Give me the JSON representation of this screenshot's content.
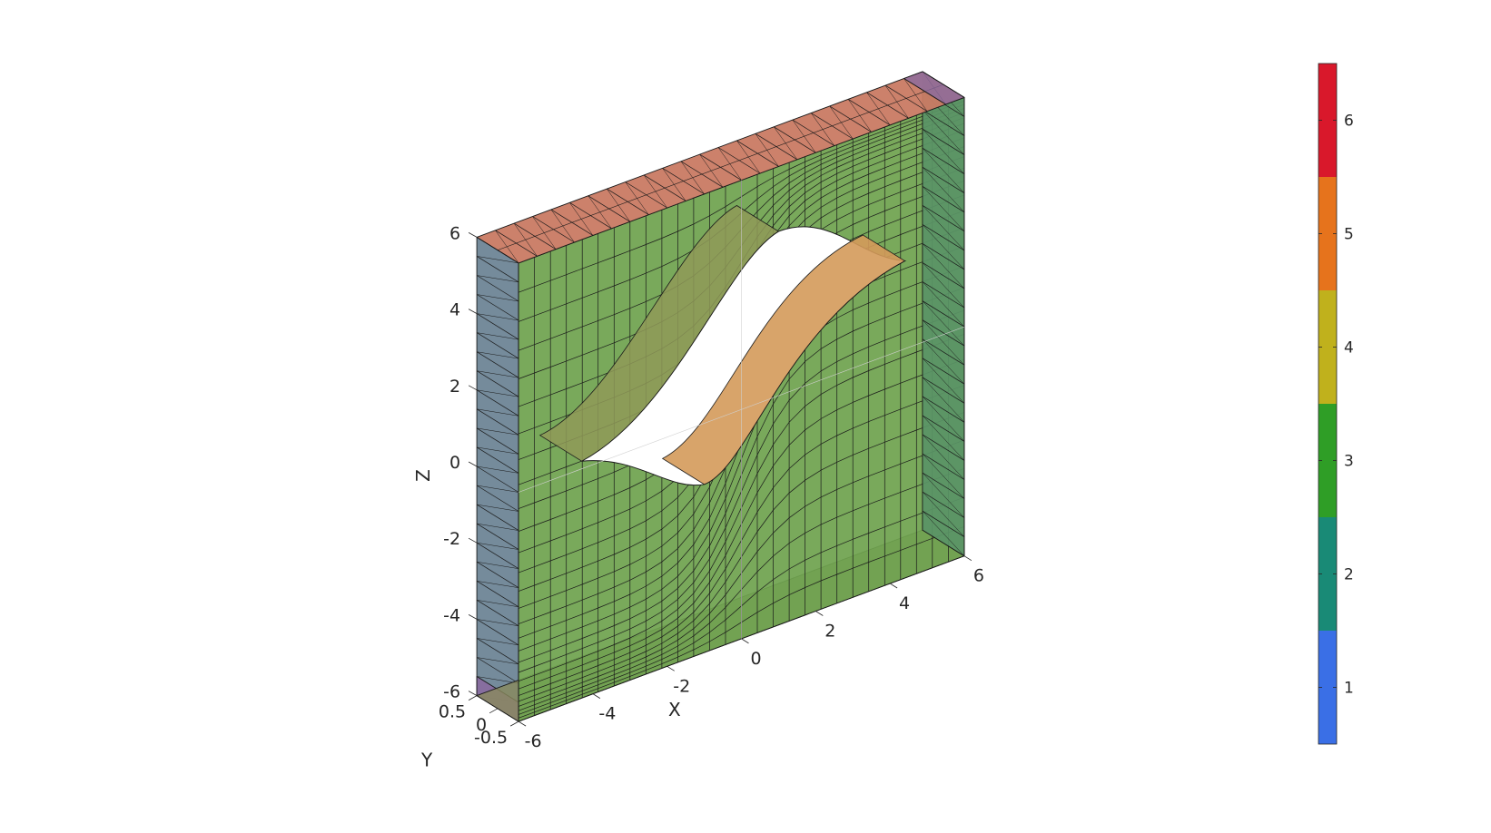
{
  "chart_data": {
    "type": "3d-mesh",
    "title": "",
    "axes": {
      "x": {
        "label": "X",
        "ticks": [
          "-6",
          "-4",
          "-2",
          "0",
          "2",
          "4",
          "6"
        ],
        "range": [
          -6,
          6
        ]
      },
      "y": {
        "label": "Y",
        "ticks": [
          "-0.5",
          "0",
          "0.5"
        ],
        "range": [
          -0.5,
          0.5
        ]
      },
      "z": {
        "label": "Z",
        "ticks": [
          "-6",
          "-4",
          "-2",
          "0",
          "2",
          "4",
          "6"
        ],
        "range": [
          -6,
          6
        ]
      }
    },
    "colorbar": {
      "ticks": [
        "1",
        "2",
        "3",
        "4",
        "5",
        "6"
      ],
      "levels": [
        {
          "value": 1,
          "color": "#3a6fe6"
        },
        {
          "value": 2,
          "color": "#198a76"
        },
        {
          "value": 3,
          "color": "#2f9e26"
        },
        {
          "value": 4,
          "color": "#c0b11c"
        },
        {
          "value": 5,
          "color": "#e6731c"
        },
        {
          "value": 6,
          "color": "#d9182b"
        }
      ]
    },
    "face_colors": {
      "front": "#6fa34f",
      "top": "#c97a63",
      "left": "#6e8596",
      "right": "#5a9466",
      "bottom": "#8a8a5c",
      "corner": "#8a6aa0",
      "hole_lower": "#d49a5a",
      "hole_upper": "#8f9a58"
    }
  }
}
